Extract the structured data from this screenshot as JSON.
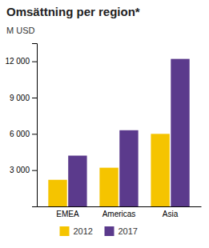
{
  "chart_data": {
    "type": "bar",
    "title": "Omsättning per region*",
    "ylabel": "M USD",
    "categories": [
      "EMEA",
      "Americas",
      "Asia"
    ],
    "series": [
      {
        "name": "2012",
        "color": "#F5C400",
        "values": [
          2200,
          3200,
          6000
        ]
      },
      {
        "name": "2017",
        "color": "#5B3A8C",
        "values": [
          4200,
          6300,
          12200
        ]
      }
    ],
    "ylim": [
      0,
      13500
    ],
    "yticks": [
      {
        "value": 0,
        "label": null
      },
      {
        "value": 3000,
        "label": "3 000"
      },
      {
        "value": 6000,
        "label": "6 000"
      },
      {
        "value": 9000,
        "label": "9 000"
      },
      {
        "value": 12000,
        "label": "12 000"
      }
    ],
    "grid": false,
    "legend": "bottom"
  }
}
